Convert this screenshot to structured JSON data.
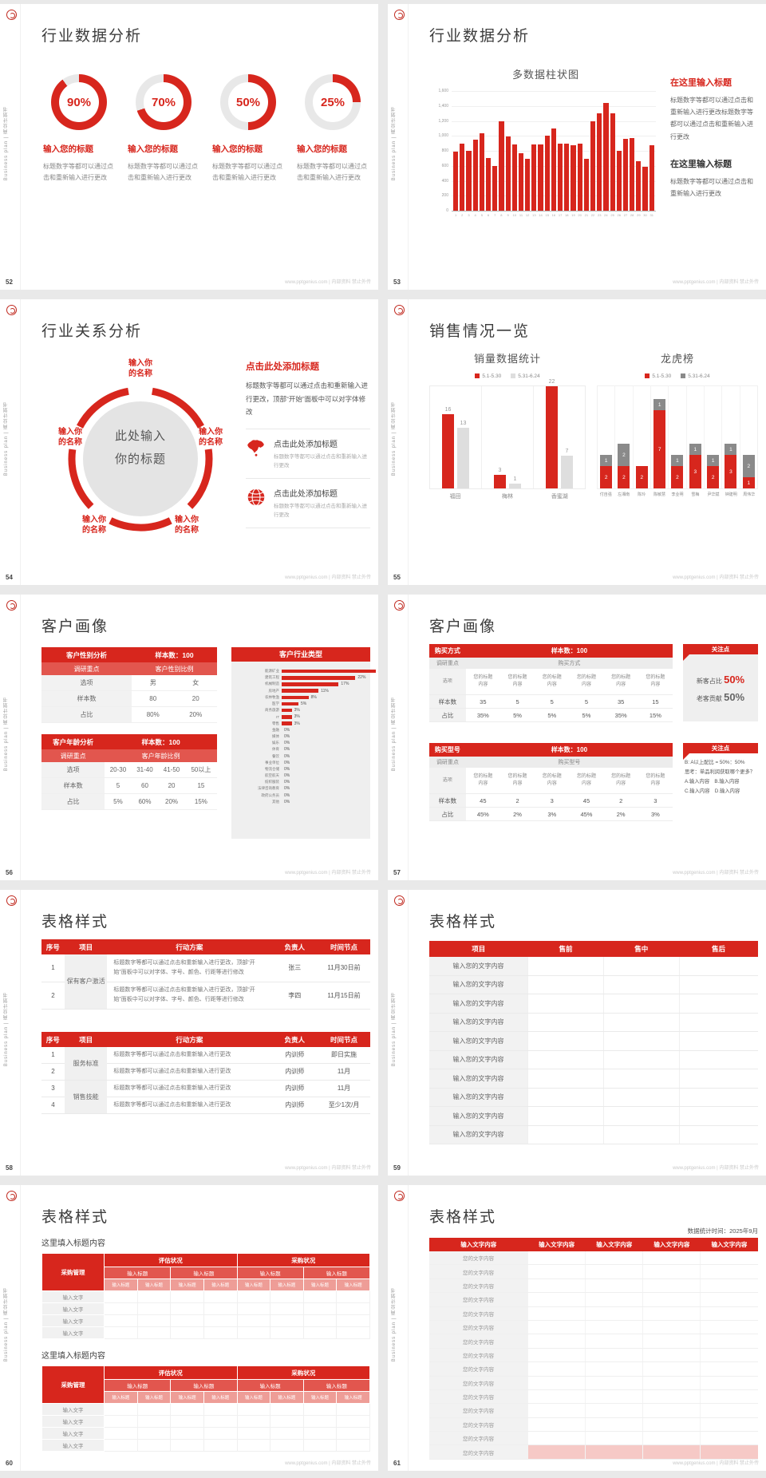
{
  "footer": "www.pptgenius.com | 内部资料 禁止外传",
  "side_text": "Business plan | 商业计划书",
  "colors": {
    "accent": "#d7261d",
    "sub_red": "#e2564e",
    "light_red": "#ee9d97",
    "pink": "#f6c9c6",
    "bar_gray": "#dedede",
    "dark_gray": "#8a8a8a",
    "ring_gray": "#e8e8e8"
  },
  "slides": {
    "s52": {
      "page": "52",
      "title": "行业数据分析",
      "heading": "输入您的标题",
      "desc": "标题数字等都可以通过点击和重新输入进行更改",
      "donuts": [
        {
          "label": "90%",
          "value": 90
        },
        {
          "label": "70%",
          "value": 70
        },
        {
          "label": "50%",
          "value": 50
        },
        {
          "label": "25%",
          "value": 25
        }
      ]
    },
    "s53": {
      "page": "53",
      "title": "行业数据分析",
      "chart": {
        "title": "多数据柱状图",
        "ymax": 1600,
        "y_ticks": [
          "1,600",
          "1,400",
          "1,200",
          "1,000",
          "800",
          "600",
          "400",
          "200",
          "0"
        ],
        "x": [
          "1",
          "2",
          "3",
          "4",
          "5",
          "6",
          "7",
          "8",
          "9",
          "10",
          "11",
          "12",
          "13",
          "14",
          "15",
          "16",
          "17",
          "18",
          "19",
          "20",
          "21",
          "22",
          "23",
          "24",
          "25",
          "26",
          "27",
          "28",
          "29",
          "30",
          "31"
        ],
        "values": [
          790,
          900,
          800,
          950,
          1030,
          700,
          600,
          1200,
          990,
          890,
          770,
          690,
          890,
          890,
          1000,
          1100,
          900,
          900,
          880,
          900,
          690,
          1200,
          1300,
          1440,
          1300,
          800,
          960,
          970,
          660,
          590,
          880
        ]
      },
      "callouts": [
        {
          "style": "red",
          "heading": "在这里输入标题",
          "desc": "标题数字等都可以通过点击和重新输入进行更改标题数字等都可以通过点击和重新输入进行更改"
        },
        {
          "style": "dark",
          "heading": "在这里输入标题",
          "desc": "标题数字等都可以通过点击和重新输入进行更改"
        }
      ]
    },
    "s54": {
      "page": "54",
      "title": "行业关系分析",
      "wheel": {
        "center": "此处输入\n你的标题",
        "labels": [
          "输入你\n的名称",
          "输入你\n的名称",
          "输入你\n的名称",
          "输入你\n的名称",
          "输入你\n的名称"
        ]
      },
      "callout": {
        "heading": "点击此处添加标题",
        "desc": "标题数字等都可以通过点击和重新输入进行更改，顶部“开始”面板中可以对字体修改"
      },
      "items": [
        {
          "icon": "china-map-icon",
          "heading": "点击此处添加标题",
          "desc": "标题数字等都可以通过点击和重新输入进行更改"
        },
        {
          "icon": "globe-icon",
          "heading": "点击此处添加标题",
          "desc": "标题数字等都可以通过点击和重新输入进行更改"
        }
      ]
    },
    "s55": {
      "page": "55",
      "title": "销售情况一览",
      "chartA": {
        "title": "销量数据统计",
        "legend": [
          "5.1-5.30",
          "5.31-6.24"
        ],
        "categories": [
          "福田",
          "梅林",
          "香蜜湖"
        ],
        "red": [
          16,
          3,
          22
        ],
        "gray": [
          13,
          1,
          7
        ]
      },
      "chartB": {
        "title": "龙虎榜",
        "legend": [
          "5.1-5.30",
          "5.31-6.24"
        ],
        "categories": [
          "付自强",
          "左湘南",
          "陈玲",
          "陈敏慧",
          "李业明",
          "雪梅",
          "尹华斌",
          "钟建明",
          "周伟华"
        ],
        "red": [
          2,
          2,
          2,
          7,
          2,
          3,
          2,
          3,
          1
        ],
        "gray": [
          1,
          2,
          0,
          1,
          1,
          1,
          1,
          1,
          2
        ]
      }
    },
    "s56": {
      "page": "56",
      "title": "客户画像",
      "tables": [
        {
          "h1": "客户性别分析",
          "h2": "样本数：100",
          "sub1": "调研重点",
          "sub2": "客户性别比例",
          "rows": [
            [
              "选项",
              "男",
              "女"
            ],
            [
              "样本数",
              "80",
              "20"
            ],
            [
              "占比",
              "80%",
              "20%"
            ]
          ]
        },
        {
          "h1": "客户年龄分析",
          "h2": "样本数：100",
          "sub1": "调研重点",
          "sub2": "客户年龄比例",
          "rows": [
            [
              "选项",
              "20-30",
              "31-40",
              "41-50",
              "50以上"
            ],
            [
              "样本数",
              "5",
              "60",
              "20",
              "15"
            ],
            [
              "占比",
              "5%",
              "60%",
              "20%",
              "15%"
            ]
          ]
        }
      ],
      "industry": {
        "title": "客户行业类型",
        "categories": [
          "能源矿业",
          "建筑工程",
          "机械制造",
          "房地产",
          "农林牧渔",
          "医学",
          "商务旅游",
          "IT",
          "零售",
          "金融",
          "媒体",
          "娱乐",
          "体育",
          "餐饮",
          "事业单位",
          "物流仓储",
          "航空航天",
          "纺织服装",
          "法律咨询教育",
          "政府公务员",
          "其他"
        ],
        "values": [
          28,
          22,
          17,
          11,
          8,
          5,
          3,
          3,
          3,
          0,
          0,
          0,
          0,
          0,
          0,
          0,
          0,
          0,
          0,
          0,
          0
        ]
      }
    },
    "s57": {
      "page": "57",
      "title": "客户画像",
      "groups": [
        {
          "h1": "购买方式",
          "h2": "样本数：100",
          "sub1": "调研重点",
          "sub2": "购买方式",
          "opt_label": "选项",
          "opt_cell": "您的标题内容",
          "count_label": "样本数",
          "counts": [
            "35",
            "5",
            "5",
            "5",
            "35",
            "15"
          ],
          "ratio_label": "占比",
          "ratios": [
            "35%",
            "5%",
            "5%",
            "5%",
            "35%",
            "15%"
          ],
          "note": {
            "title": "关注点",
            "type": "big",
            "lines": [
              {
                "pre": "新客占比 ",
                "big": "50%",
                "color": "red"
              },
              {
                "pre": "老客贡献 ",
                "big": "50%",
                "color": "gray"
              }
            ]
          }
        },
        {
          "h1": "购买型号",
          "h2": "样本数：100",
          "sub1": "调研重点",
          "sub2": "购买型号",
          "opt_label": "选项",
          "opt_cell": "您的标题内容",
          "count_label": "样本数",
          "counts": [
            "45",
            "2",
            "3",
            "45",
            "2",
            "3"
          ],
          "ratio_label": "占比",
          "ratios": [
            "45%",
            "2%",
            "3%",
            "45%",
            "2%",
            "3%"
          ],
          "note": {
            "title": "关注点",
            "type": "text",
            "lines": [
              "B: A以上配比 = 50%：50%",
              "思考：单品利润获取哪个更多？",
              "A.输入内容　B.输入内容",
              "C.输入内容　D.输入内容"
            ]
          }
        }
      ]
    },
    "s58": {
      "page": "58",
      "title": "表格样式",
      "headers": [
        "序号",
        "项目",
        "行动方案",
        "负责人",
        "时间节点"
      ],
      "table1": [
        {
          "no": "1",
          "proj": "保有客户激活",
          "span": 2,
          "plan": "标题数字等都可以通过点击和重新输入进行更改，顶部“开始”面板中可以对字体、字号、颜色、行距等进行修改",
          "owner": "张三",
          "time": "11月30日前"
        },
        {
          "no": "2",
          "plan": "标题数字等都可以通过点击和重新输入进行更改，顶部“开始”面板中可以对字体、字号、颜色、行距等进行修改",
          "owner": "李四",
          "time": "11月15日前"
        }
      ],
      "table2": [
        {
          "no": "1",
          "proj": "服务标准",
          "span": 2,
          "plan": "标题数字等都可以通过点击和重新输入进行更改",
          "owner": "内训师",
          "time": "即日实施"
        },
        {
          "no": "2",
          "plan": "标题数字等都可以通过点击和重新输入进行更改",
          "owner": "内训师",
          "time": "11月"
        },
        {
          "no": "3",
          "proj": "销售技能",
          "span": 2,
          "plan": "标题数字等都可以通过点击和重新输入进行更改",
          "owner": "内训师",
          "time": "11月"
        },
        {
          "no": "4",
          "plan": "标题数字等都可以通过点击和重新输入进行更改",
          "owner": "内训师",
          "time": "至少1次/月"
        }
      ]
    },
    "s59": {
      "page": "59",
      "title": "表格样式",
      "headers": [
        "项目",
        "售前",
        "售中",
        "售后"
      ],
      "row_label": "输入您的文字内容",
      "row_count": 10
    },
    "s60": {
      "page": "60",
      "title": "表格样式",
      "caption": "这里填入标题内容",
      "corner": "采购管理",
      "top": [
        "评估状况",
        "采购状况"
      ],
      "mid": "输入标题",
      "leaf": "输入标题",
      "row_label": "输入文字",
      "row_count": 4,
      "section_count": 2
    },
    "s61": {
      "page": "61",
      "title": "表格样式",
      "note": "数据统计时间：2025年9月",
      "header_cell": "输入文字内容",
      "col_count": 5,
      "row_label": "您的文字内容",
      "row_count": 15
    }
  },
  "chart_data": [
    {
      "type": "pie",
      "subtype": "donut-percents",
      "slide": "52",
      "values": [
        90,
        70,
        50,
        25
      ],
      "labels": [
        "90%",
        "70%",
        "50%",
        "25%"
      ]
    },
    {
      "type": "bar",
      "slide": "53",
      "title": "多数据柱状图",
      "xlabel": "",
      "ylabel": "",
      "ylim": [
        0,
        1600
      ],
      "grid": true,
      "categories": [
        "1",
        "2",
        "3",
        "4",
        "5",
        "6",
        "7",
        "8",
        "9",
        "10",
        "11",
        "12",
        "13",
        "14",
        "15",
        "16",
        "17",
        "18",
        "19",
        "20",
        "21",
        "22",
        "23",
        "24",
        "25",
        "26",
        "27",
        "28",
        "29",
        "30",
        "31"
      ],
      "values": [
        790,
        900,
        800,
        950,
        1030,
        700,
        600,
        1200,
        990,
        890,
        770,
        690,
        890,
        890,
        1000,
        1100,
        900,
        900,
        880,
        900,
        690,
        1200,
        1300,
        1440,
        1300,
        800,
        960,
        970,
        660,
        590,
        880
      ]
    },
    {
      "type": "bar",
      "slide": "55",
      "title": "销量数据统计",
      "legend_position": "top",
      "categories": [
        "福田",
        "梅林",
        "香蜜湖"
      ],
      "series": [
        {
          "name": "5.1-5.30",
          "values": [
            16,
            3,
            22
          ]
        },
        {
          "name": "5.31-6.24",
          "values": [
            13,
            1,
            7
          ]
        }
      ]
    },
    {
      "type": "bar",
      "subtype": "stacked",
      "slide": "55",
      "title": "龙虎榜",
      "legend_position": "top",
      "categories": [
        "付自强",
        "左湘南",
        "陈玲",
        "陈敏慧",
        "李业明",
        "雪梅",
        "尹华斌",
        "钟建明",
        "周伟华"
      ],
      "series": [
        {
          "name": "5.1-5.30",
          "values": [
            2,
            2,
            2,
            7,
            2,
            3,
            2,
            3,
            1
          ]
        },
        {
          "name": "5.31-6.24",
          "values": [
            1,
            2,
            0,
            1,
            1,
            1,
            1,
            1,
            2
          ]
        }
      ]
    },
    {
      "type": "bar",
      "subtype": "horizontal",
      "slide": "56",
      "title": "客户行业类型",
      "categories": [
        "能源矿业",
        "建筑工程",
        "机械制造",
        "房地产",
        "农林牧渔",
        "医学",
        "商务旅游",
        "IT",
        "零售",
        "金融",
        "媒体",
        "娱乐",
        "体育",
        "餐饮",
        "事业单位",
        "物流仓储",
        "航空航天",
        "纺织服装",
        "法律咨询教育",
        "政府公务员",
        "其他"
      ],
      "values": [
        28,
        22,
        17,
        11,
        8,
        5,
        3,
        3,
        3,
        0,
        0,
        0,
        0,
        0,
        0,
        0,
        0,
        0,
        0,
        0,
        0
      ]
    }
  ]
}
